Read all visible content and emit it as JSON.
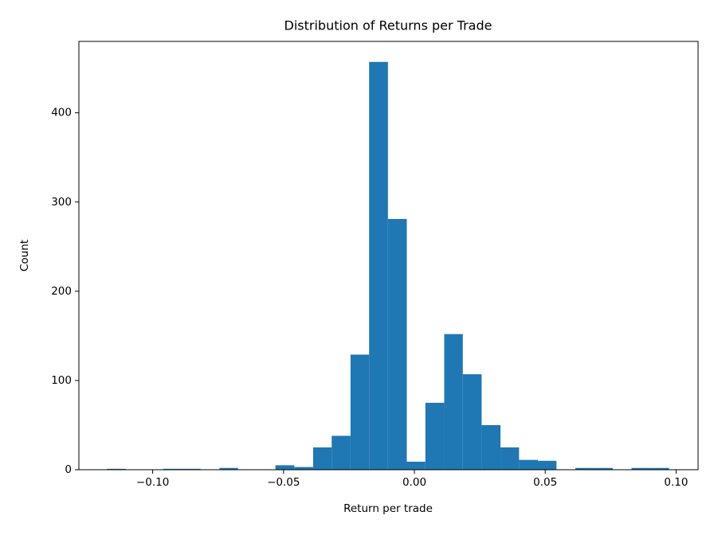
{
  "chart_data": {
    "type": "histogram",
    "title": "Distribution of Returns per Trade",
    "x_label": "Return per trade",
    "y_label": "Count",
    "color": "#1f77b4",
    "bins": [
      -0.1175,
      -0.1103,
      -0.1032,
      -0.096,
      -0.0889,
      -0.0817,
      -0.0745,
      -0.0674,
      -0.0602,
      -0.0531,
      -0.0459,
      -0.0387,
      -0.0316,
      -0.0244,
      -0.0173,
      -0.0101,
      -0.0029,
      0.0042,
      0.0114,
      0.0185,
      0.0257,
      0.0329,
      0.04,
      0.0472,
      0.0543,
      0.0615,
      0.0687,
      0.0758,
      0.083,
      0.0901,
      0.0973
    ],
    "counts": [
      1,
      0,
      0,
      1,
      1,
      0,
      2,
      0,
      0,
      5,
      3,
      25,
      38,
      129,
      457,
      281,
      9,
      75,
      152,
      107,
      50,
      25,
      11,
      10,
      0,
      2,
      2,
      0,
      2,
      2
    ],
    "xlim": [
      -0.1282,
      0.1084
    ],
    "ylim": [
      0,
      480
    ],
    "xticks": [
      {
        "value": -0.1,
        "label": "−0.10"
      },
      {
        "value": -0.05,
        "label": "−0.05"
      },
      {
        "value": 0,
        "label": "0.00"
      },
      {
        "value": 0.05,
        "label": "0.05"
      },
      {
        "value": 0.1,
        "label": "0.10"
      }
    ],
    "yticks": [
      0,
      100,
      200,
      300,
      400
    ]
  }
}
